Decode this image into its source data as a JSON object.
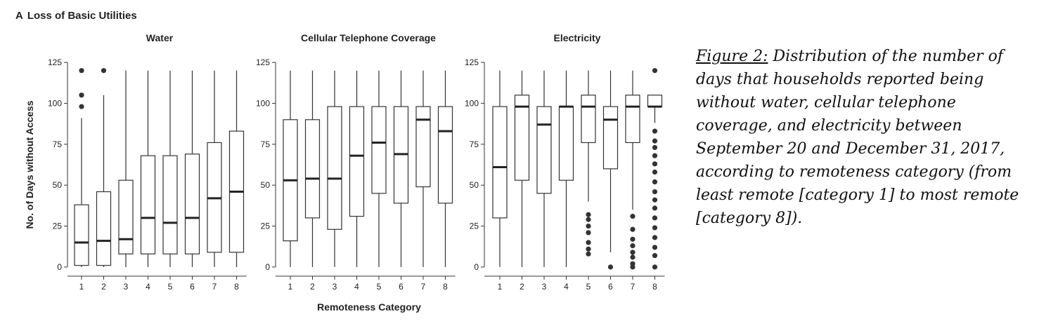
{
  "panel": {
    "letter": "A",
    "title": "Loss of Basic Utilities"
  },
  "shared": {
    "ylabel": "No. of Days without Access",
    "xlabel": "Remoteness Category",
    "yticks": [
      0,
      25,
      50,
      75,
      100,
      125
    ],
    "categories": [
      "1",
      "2",
      "3",
      "4",
      "5",
      "6",
      "7",
      "8"
    ]
  },
  "caption": {
    "label": "Figure 2:",
    "text": " Distribution of the number of days that households reported being without water, cellular telephone coverage, and electricity between September 20 and December 31, 2017, according to remoteness category (from least remote [category 1] to most remote [category 8])."
  },
  "chart_data": [
    {
      "type": "box",
      "title": "Water",
      "ylim": [
        0,
        125
      ],
      "categories": [
        "1",
        "2",
        "3",
        "4",
        "5",
        "6",
        "7",
        "8"
      ],
      "boxes": [
        {
          "whisker_low": 0,
          "q1": 1,
          "median": 15,
          "q3": 38,
          "whisker_high": 91,
          "outliers": [
            98,
            105,
            120
          ]
        },
        {
          "whisker_low": 0,
          "q1": 1,
          "median": 16,
          "q3": 46,
          "whisker_high": 105,
          "outliers": [
            120
          ]
        },
        {
          "whisker_low": 0,
          "q1": 8,
          "median": 17,
          "q3": 53,
          "whisker_high": 120,
          "outliers": []
        },
        {
          "whisker_low": 0,
          "q1": 8,
          "median": 30,
          "q3": 68,
          "whisker_high": 120,
          "outliers": []
        },
        {
          "whisker_low": 0,
          "q1": 8,
          "median": 27,
          "q3": 68,
          "whisker_high": 120,
          "outliers": []
        },
        {
          "whisker_low": 0,
          "q1": 8,
          "median": 30,
          "q3": 69,
          "whisker_high": 120,
          "outliers": []
        },
        {
          "whisker_low": 0,
          "q1": 9,
          "median": 42,
          "q3": 76,
          "whisker_high": 120,
          "outliers": []
        },
        {
          "whisker_low": 0,
          "q1": 9,
          "median": 46,
          "q3": 83,
          "whisker_high": 120,
          "outliers": []
        }
      ]
    },
    {
      "type": "box",
      "title": "Cellular Telephone Coverage",
      "ylim": [
        0,
        125
      ],
      "categories": [
        "1",
        "2",
        "3",
        "4",
        "5",
        "6",
        "7",
        "8"
      ],
      "boxes": [
        {
          "whisker_low": 0,
          "q1": 16,
          "median": 53,
          "q3": 90,
          "whisker_high": 120,
          "outliers": []
        },
        {
          "whisker_low": 0,
          "q1": 30,
          "median": 54,
          "q3": 90,
          "whisker_high": 120,
          "outliers": []
        },
        {
          "whisker_low": 0,
          "q1": 23,
          "median": 54,
          "q3": 98,
          "whisker_high": 120,
          "outliers": []
        },
        {
          "whisker_low": 0,
          "q1": 31,
          "median": 68,
          "q3": 98,
          "whisker_high": 120,
          "outliers": []
        },
        {
          "whisker_low": 0,
          "q1": 45,
          "median": 76,
          "q3": 98,
          "whisker_high": 120,
          "outliers": []
        },
        {
          "whisker_low": 0,
          "q1": 39,
          "median": 69,
          "q3": 98,
          "whisker_high": 120,
          "outliers": []
        },
        {
          "whisker_low": 0,
          "q1": 49,
          "median": 90,
          "q3": 98,
          "whisker_high": 120,
          "outliers": []
        },
        {
          "whisker_low": 0,
          "q1": 39,
          "median": 83,
          "q3": 98,
          "whisker_high": 120,
          "outliers": []
        }
      ]
    },
    {
      "type": "box",
      "title": "Electricity",
      "ylim": [
        0,
        125
      ],
      "categories": [
        "1",
        "2",
        "3",
        "4",
        "5",
        "6",
        "7",
        "8"
      ],
      "boxes": [
        {
          "whisker_low": 0,
          "q1": 30,
          "median": 61,
          "q3": 98,
          "whisker_high": 120,
          "outliers": []
        },
        {
          "whisker_low": 0,
          "q1": 53,
          "median": 98,
          "q3": 105,
          "whisker_high": 120,
          "outliers": []
        },
        {
          "whisker_low": 0,
          "q1": 45,
          "median": 87,
          "q3": 98,
          "whisker_high": 120,
          "outliers": []
        },
        {
          "whisker_low": 0,
          "q1": 53,
          "median": 98,
          "q3": 98,
          "whisker_high": 120,
          "outliers": []
        },
        {
          "whisker_low": 40,
          "q1": 76,
          "median": 98,
          "q3": 105,
          "whisker_high": 120,
          "outliers": [
            8,
            11,
            15,
            21,
            25,
            29,
            32
          ]
        },
        {
          "whisker_low": 9,
          "q1": 60,
          "median": 90,
          "q3": 98,
          "whisker_high": 120,
          "outliers": [
            0
          ]
        },
        {
          "whisker_low": 35,
          "q1": 76,
          "median": 98,
          "q3": 105,
          "whisker_high": 120,
          "outliers": [
            0,
            2,
            6,
            9,
            13,
            17,
            23,
            31
          ]
        },
        {
          "whisker_low": 88,
          "q1": 98,
          "median": 98,
          "q3": 105,
          "whisker_high": 105,
          "outliers": [
            0,
            7,
            12,
            18,
            24,
            30,
            36,
            41,
            46,
            52,
            58,
            63,
            68,
            73,
            77,
            83,
            120
          ]
        }
      ]
    }
  ]
}
